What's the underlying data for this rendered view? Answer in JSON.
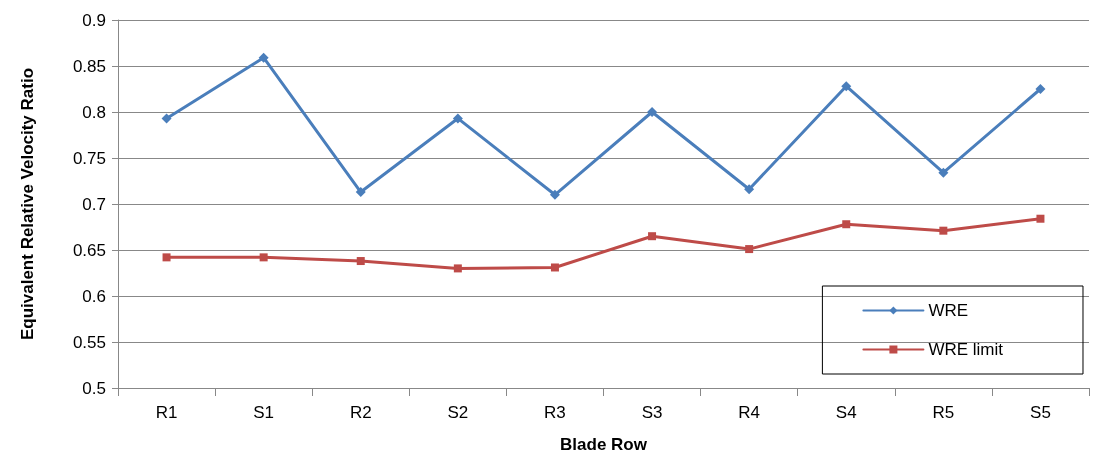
{
  "chart_data": {
    "type": "line",
    "xlabel": "Blade Row",
    "ylabel": "Equivalent Relative Velocity Ratio",
    "categories": [
      "R1",
      "S1",
      "R2",
      "S2",
      "R3",
      "S3",
      "R4",
      "S4",
      "R5",
      "S5"
    ],
    "series": [
      {
        "name": "WRE",
        "color": "#4a7ebb",
        "marker": "diamond",
        "values": [
          0.793,
          0.859,
          0.713,
          0.793,
          0.71,
          0.8,
          0.716,
          0.828,
          0.734,
          0.825
        ]
      },
      {
        "name": "WRE limit",
        "color": "#be4b48",
        "marker": "square",
        "values": [
          0.642,
          0.642,
          0.638,
          0.63,
          0.631,
          0.665,
          0.651,
          0.678,
          0.671,
          0.684
        ]
      }
    ],
    "ylim": [
      0.5,
      0.9
    ],
    "yticks": [
      0.5,
      0.55,
      0.6,
      0.65,
      0.7,
      0.75,
      0.8,
      0.85,
      0.9
    ],
    "grid": "y",
    "legend": "bottom right",
    "line_style": "solid"
  }
}
